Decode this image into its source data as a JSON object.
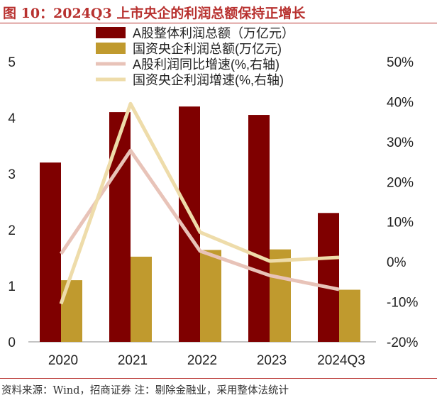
{
  "title": "图 10：2024Q3 上市央企的利润总额保持正增长",
  "footer": "资料来源：Wind，招商证券  注：剔除金融业，采用整体法统计",
  "chart_data": {
    "type": "bar+line",
    "categories": [
      "2020",
      "2021",
      "2022",
      "2023",
      "2024Q3"
    ],
    "left_axis": {
      "range": [
        0,
        5
      ],
      "ticks": [
        "0",
        "1",
        "2",
        "3",
        "4",
        "5"
      ]
    },
    "right_axis": {
      "range": [
        -20,
        50
      ],
      "ticks": [
        "-20%",
        "-10%",
        "0%",
        "10%",
        "20%",
        "30%",
        "40%",
        "50%"
      ]
    },
    "grid": false,
    "legend_position": "top",
    "series": [
      {
        "name": "A股整体利润总额（万亿元）",
        "type": "bar",
        "axis": "left",
        "color": "#7f0000",
        "values": [
          3.2,
          4.1,
          4.2,
          4.05,
          2.3
        ]
      },
      {
        "name": "国资央企利润总额(万亿元)",
        "type": "bar",
        "axis": "left",
        "color": "#c09a2e",
        "values": [
          1.1,
          1.52,
          1.64,
          1.65,
          0.93
        ]
      },
      {
        "name": "A股利润同比增速(%,右轴)",
        "type": "line",
        "axis": "right",
        "color": "#e8c3b8",
        "values": [
          2.0,
          27.8,
          2.7,
          -3.4,
          -6.9
        ]
      },
      {
        "name": "国资央企利润增速(%,右轴)",
        "type": "line",
        "axis": "right",
        "color": "#eedcaa",
        "values": [
          -10.5,
          39.5,
          7.4,
          0.2,
          1.1
        ]
      }
    ]
  }
}
